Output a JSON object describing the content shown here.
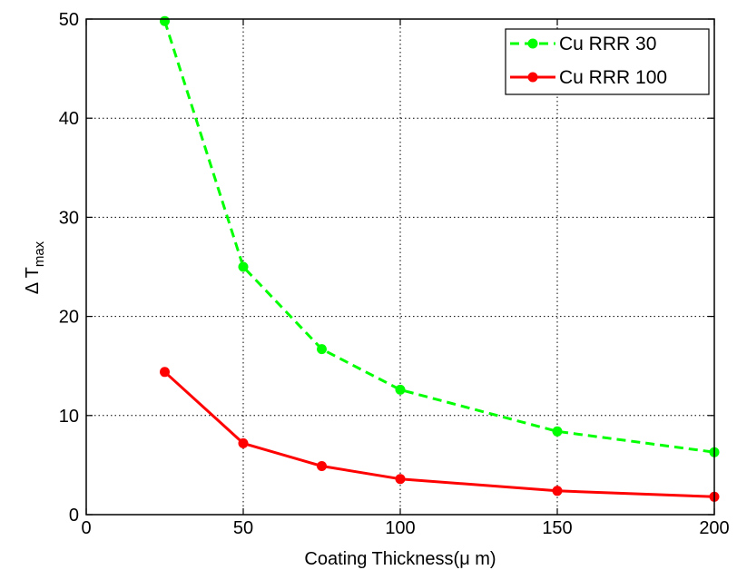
{
  "chart_data": {
    "type": "line",
    "title": "",
    "xlabel": "Coating Thickness(μ m)",
    "ylabel": {
      "base": "Δ T",
      "subscript": "max"
    },
    "xlim": [
      0,
      200
    ],
    "ylim": [
      0,
      50
    ],
    "xticks": [
      0,
      50,
      100,
      150,
      200
    ],
    "yticks": [
      0,
      10,
      20,
      30,
      40,
      50
    ],
    "grid": true,
    "legend_position": "top-right",
    "series": [
      {
        "name": "Cu RRR 30",
        "color": "#00ff00",
        "line_style": "dashed",
        "marker": "circle",
        "x": [
          25,
          50,
          75,
          100,
          150,
          200
        ],
        "y": [
          49.8,
          25.0,
          16.7,
          12.6,
          8.4,
          6.3
        ]
      },
      {
        "name": "Cu RRR 100",
        "color": "#ff0000",
        "line_style": "solid",
        "marker": "circle",
        "x": [
          25,
          50,
          75,
          100,
          150,
          200
        ],
        "y": [
          14.4,
          7.2,
          4.9,
          3.6,
          2.4,
          1.8
        ]
      }
    ]
  }
}
